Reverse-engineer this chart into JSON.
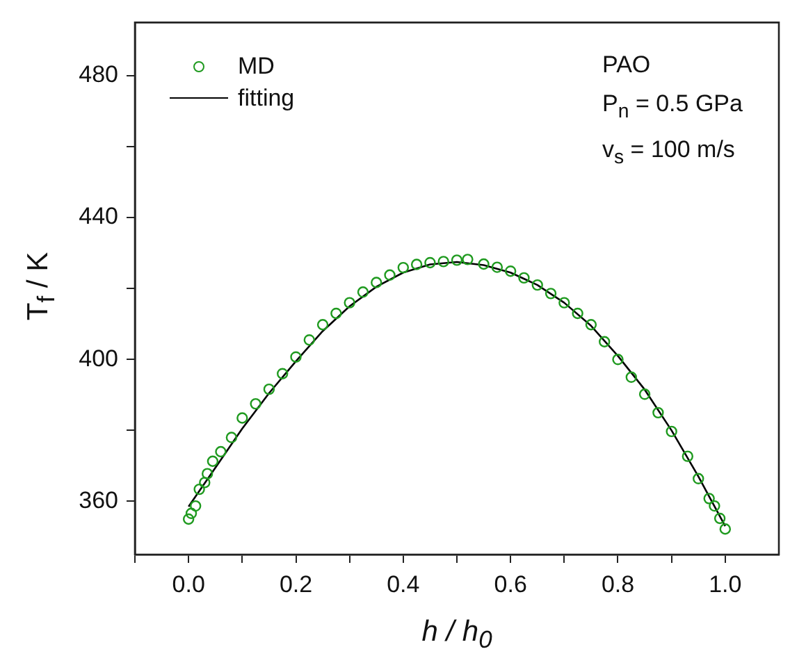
{
  "chart_data": {
    "type": "scatter",
    "xlabel": "h / h$_{0}$",
    "ylabel": "T$_{f}$ / K",
    "annotations": [
      "PAO",
      "P$_{n}$ = 0.5 GPa",
      "v$_{s}$ = 100 m/s"
    ],
    "xlim": [
      -0.1,
      1.1
    ],
    "xticks": [
      {
        "value": -0.1,
        "label": null
      },
      {
        "value": 0,
        "label": "0.0"
      },
      {
        "value": 0.1,
        "label": null
      },
      0.2,
      {
        "value": 0.3,
        "label": null
      },
      0.4,
      {
        "value": 0.5,
        "label": null
      },
      0.6,
      {
        "value": 0.7,
        "label": null
      },
      0.8,
      {
        "value": 0.9,
        "label": null
      },
      {
        "value": 1,
        "label": "1.0"
      }
    ],
    "ylim": [
      345,
      495
    ],
    "yticks": [
      360,
      {
        "value": 380,
        "label": null
      },
      400,
      {
        "value": 420,
        "label": null
      },
      440,
      {
        "value": 460,
        "label": null
      },
      480
    ],
    "legend": "top left",
    "series": [
      {
        "name": "MD",
        "marker": "circle",
        "color": "#1f9a1f",
        "x": [
          0,
          0.005,
          0.013,
          0.02,
          0.03,
          0.035,
          0.045,
          0.06,
          0.08,
          0.1,
          0.125,
          0.15,
          0.175,
          0.2,
          0.225,
          0.25,
          0.275,
          0.3,
          0.325,
          0.35,
          0.375,
          0.4,
          0.425,
          0.45,
          0.475,
          0.5,
          0.52,
          0.55,
          0.575,
          0.6,
          0.625,
          0.65,
          0.675,
          0.7,
          0.725,
          0.75,
          0.775,
          0.8,
          0.825,
          0.85,
          0.875,
          0.9,
          0.93,
          0.95,
          0.97,
          0.98,
          0.99,
          1
        ],
        "values": [
          355,
          356.6,
          358.7,
          363.4,
          365.3,
          367.8,
          371.3,
          374,
          378,
          383.5,
          387.5,
          391.6,
          396,
          400.7,
          405.5,
          409.8,
          413,
          416,
          419,
          421.7,
          423.8,
          425.9,
          426.8,
          427.3,
          427.6,
          428,
          428.2,
          426.9,
          426,
          424.9,
          423,
          421,
          418.6,
          416,
          413,
          409.8,
          405,
          400,
          395,
          390.2,
          385,
          379.7,
          372.7,
          366.4,
          360.8,
          358.7,
          355.2,
          352.2
        ]
      },
      {
        "name": "fitting",
        "type": "line",
        "marker": "none",
        "line_style": "solid",
        "color": "#000000",
        "x": [
          0,
          0.05,
          0.1,
          0.15,
          0.2,
          0.25,
          0.3,
          0.35,
          0.4,
          0.45,
          0.5,
          0.55,
          0.6,
          0.65,
          0.7,
          0.75,
          0.8,
          0.85,
          0.9,
          0.95,
          1
        ],
        "values": [
          358.5,
          369.5,
          380.5,
          390.5,
          399.5,
          408,
          415,
          420.5,
          424.5,
          426.8,
          427.5,
          426.6,
          424.5,
          421,
          416,
          409.5,
          401,
          391.5,
          380,
          367,
          353
        ]
      }
    ]
  }
}
